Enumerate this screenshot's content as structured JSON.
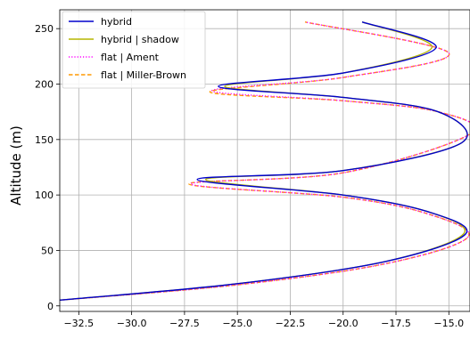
{
  "chart_data": {
    "type": "line",
    "title": "",
    "xlabel": "",
    "ylabel": "Altitude (m)",
    "xlim": [
      -33.4,
      -14.0
    ],
    "ylim": [
      -5,
      267
    ],
    "grid": true,
    "legend_position": "top-left",
    "x_ticks": [
      {
        "value": -32.5,
        "label": "−32.5"
      },
      {
        "value": -30.0,
        "label": "−30.0"
      },
      {
        "value": -27.5,
        "label": "−27.5"
      },
      {
        "value": -25.0,
        "label": "−25.0"
      },
      {
        "value": -22.5,
        "label": "−22.5"
      },
      {
        "value": -20.0,
        "label": "−20.0"
      },
      {
        "value": -17.5,
        "label": "−17.5"
      },
      {
        "value": -15.0,
        "label": "−15.0"
      }
    ],
    "y_ticks": [
      {
        "value": 0,
        "label": "0"
      },
      {
        "value": 50,
        "label": "50"
      },
      {
        "value": 100,
        "label": "100"
      },
      {
        "value": 150,
        "label": "150"
      },
      {
        "value": 200,
        "label": "200"
      },
      {
        "value": 250,
        "label": "250"
      }
    ],
    "series": [
      {
        "name": "hybrid",
        "color": "#0000cc",
        "dash": "solid",
        "points": [
          [
            -33.5,
            5
          ],
          [
            -25,
            20
          ],
          [
            -18,
            40
          ],
          [
            -14.2,
            65
          ],
          [
            -16,
            85
          ],
          [
            -20,
            100
          ],
          [
            -26.9,
            114
          ],
          [
            -20,
            122
          ],
          [
            -14.4,
            147
          ],
          [
            -15.5,
            175
          ],
          [
            -20,
            188
          ],
          [
            -25.9,
            198
          ],
          [
            -20,
            210
          ],
          [
            -15.6,
            233
          ],
          [
            -19.1,
            256
          ]
        ]
      },
      {
        "name": "hybrid | shadow",
        "color": "#b5b500",
        "dash": "solid",
        "points": [
          [
            -33.5,
            5
          ],
          [
            -25,
            20
          ],
          [
            -18,
            40
          ],
          [
            -14.3,
            65
          ],
          [
            -16,
            85
          ],
          [
            -20,
            100
          ],
          [
            -26.5,
            114
          ],
          [
            -20,
            122
          ],
          [
            -14.4,
            147
          ],
          [
            -15.5,
            175
          ],
          [
            -20,
            188
          ],
          [
            -25.6,
            198
          ],
          [
            -20,
            210
          ],
          [
            -15.8,
            233
          ],
          [
            -19.1,
            256
          ]
        ]
      },
      {
        "name": "flat | Ament",
        "color": "#ff00ff",
        "dash": "dotted",
        "points": [
          [
            -33.5,
            5
          ],
          [
            -25,
            19
          ],
          [
            -18,
            38
          ],
          [
            -14.1,
            62
          ],
          [
            -16,
            83
          ],
          [
            -20,
            98
          ],
          [
            -27.2,
            110
          ],
          [
            -20,
            120
          ],
          [
            -14.0,
            155
          ],
          [
            -15.5,
            175
          ],
          [
            -20,
            185
          ],
          [
            -26.2,
            194
          ],
          [
            -20,
            206
          ],
          [
            -15.0,
            228
          ],
          [
            -21.8,
            256
          ]
        ]
      },
      {
        "name": "flat | Miller-Brown",
        "color": "#ff9900",
        "dash": "dashed",
        "points": [
          [
            -33.5,
            5
          ],
          [
            -25,
            19
          ],
          [
            -18,
            38
          ],
          [
            -14.1,
            62
          ],
          [
            -16,
            83
          ],
          [
            -20,
            98
          ],
          [
            -27.3,
            110
          ],
          [
            -20,
            120
          ],
          [
            -14.0,
            155
          ],
          [
            -15.5,
            175
          ],
          [
            -20,
            185
          ],
          [
            -26.3,
            193
          ],
          [
            -20,
            206
          ],
          [
            -15.0,
            228
          ],
          [
            -21.8,
            256
          ]
        ]
      }
    ]
  }
}
